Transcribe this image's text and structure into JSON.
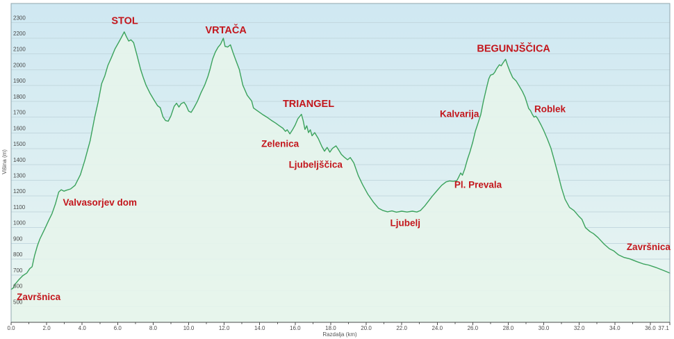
{
  "colors": {
    "annotation_red": "#c3161c",
    "line_green": "#3aa25c",
    "area_fill": "#e6f4eb",
    "bg_top": "#cfe8f2",
    "bg_mid": "#ddeff2",
    "bg_bottom": "#ecf7f1",
    "gridline": "#c3d8df",
    "axis_line": "#4a4a4a",
    "border": "#8fa6ae",
    "tick_text": "#4a4a4a"
  },
  "chart_data": {
    "type": "area",
    "title": "",
    "xlabel": "Razdalja (km)",
    "ylabel": "Višina (m)",
    "xlim": [
      0,
      37.1
    ],
    "ylim": [
      400,
      2420
    ],
    "grid": true,
    "legend": "none",
    "x_tick_values": [
      0,
      2,
      4,
      6,
      8,
      10,
      12,
      14,
      16,
      18,
      20,
      22,
      24,
      26,
      28,
      30,
      32,
      34,
      36,
      37.1
    ],
    "x_tick_labels": [
      "0.0",
      "2.0",
      "4.0",
      "6.0",
      "8.0",
      "10.0",
      "12.0",
      "14.0",
      "16.0",
      "18.0",
      "20.0",
      "22.0",
      "24.0",
      "26.0",
      "28.0",
      "30.0",
      "32.0",
      "34.0",
      "36.0",
      "37.1"
    ],
    "x_minor_ticks": [
      1,
      3,
      5,
      7,
      9,
      11,
      13,
      15,
      17,
      19,
      21,
      23,
      25,
      27,
      29,
      31,
      33,
      35
    ],
    "y_tick_values": [
      500,
      600,
      700,
      800,
      900,
      1000,
      1100,
      1200,
      1300,
      1400,
      1500,
      1600,
      1700,
      1800,
      1900,
      2000,
      2100,
      2200,
      2300
    ],
    "series": [
      {
        "name": "elevation-profile",
        "points": [
          [
            0,
            608
          ],
          [
            0.12,
            618
          ],
          [
            0.25,
            645
          ],
          [
            0.45,
            672
          ],
          [
            0.65,
            695
          ],
          [
            0.88,
            712
          ],
          [
            1.05,
            740
          ],
          [
            1.18,
            752
          ],
          [
            1.32,
            822
          ],
          [
            1.48,
            885
          ],
          [
            1.62,
            928
          ],
          [
            1.78,
            965
          ],
          [
            1.92,
            998
          ],
          [
            2.1,
            1042
          ],
          [
            2.3,
            1088
          ],
          [
            2.5,
            1152
          ],
          [
            2.68,
            1225
          ],
          [
            2.82,
            1240
          ],
          [
            2.98,
            1231
          ],
          [
            3.12,
            1237
          ],
          [
            3.35,
            1245
          ],
          [
            3.6,
            1268
          ],
          [
            3.9,
            1335
          ],
          [
            4.15,
            1425
          ],
          [
            4.45,
            1550
          ],
          [
            4.7,
            1695
          ],
          [
            4.9,
            1795
          ],
          [
            5.1,
            1912
          ],
          [
            5.28,
            1962
          ],
          [
            5.45,
            2028
          ],
          [
            5.65,
            2078
          ],
          [
            5.85,
            2132
          ],
          [
            6.05,
            2172
          ],
          [
            6.2,
            2202
          ],
          [
            6.37,
            2240
          ],
          [
            6.5,
            2208
          ],
          [
            6.62,
            2182
          ],
          [
            6.75,
            2190
          ],
          [
            6.9,
            2172
          ],
          [
            7.1,
            2088
          ],
          [
            7.3,
            2000
          ],
          [
            7.45,
            1948
          ],
          [
            7.6,
            1902
          ],
          [
            7.82,
            1852
          ],
          [
            8.08,
            1802
          ],
          [
            8.25,
            1772
          ],
          [
            8.4,
            1760
          ],
          [
            8.55,
            1702
          ],
          [
            8.7,
            1678
          ],
          [
            8.85,
            1674
          ],
          [
            9.0,
            1708
          ],
          [
            9.18,
            1768
          ],
          [
            9.32,
            1788
          ],
          [
            9.45,
            1764
          ],
          [
            9.58,
            1786
          ],
          [
            9.74,
            1794
          ],
          [
            9.86,
            1774
          ],
          [
            10.0,
            1738
          ],
          [
            10.14,
            1730
          ],
          [
            10.3,
            1760
          ],
          [
            10.5,
            1802
          ],
          [
            10.7,
            1856
          ],
          [
            10.9,
            1902
          ],
          [
            11.08,
            1956
          ],
          [
            11.2,
            2002
          ],
          [
            11.35,
            2068
          ],
          [
            11.5,
            2112
          ],
          [
            11.65,
            2142
          ],
          [
            11.8,
            2162
          ],
          [
            11.95,
            2200
          ],
          [
            12.05,
            2148
          ],
          [
            12.2,
            2144
          ],
          [
            12.35,
            2158
          ],
          [
            12.5,
            2108
          ],
          [
            12.65,
            2062
          ],
          [
            12.85,
            2002
          ],
          [
            13.05,
            1902
          ],
          [
            13.3,
            1838
          ],
          [
            13.55,
            1802
          ],
          [
            13.65,
            1758
          ],
          [
            13.8,
            1746
          ],
          [
            14.0,
            1730
          ],
          [
            14.2,
            1714
          ],
          [
            14.4,
            1700
          ],
          [
            14.65,
            1680
          ],
          [
            14.9,
            1662
          ],
          [
            15.1,
            1646
          ],
          [
            15.3,
            1630
          ],
          [
            15.45,
            1610
          ],
          [
            15.55,
            1620
          ],
          [
            15.7,
            1594
          ],
          [
            15.85,
            1620
          ],
          [
            16.0,
            1650
          ],
          [
            16.15,
            1690
          ],
          [
            16.35,
            1718
          ],
          [
            16.45,
            1678
          ],
          [
            16.55,
            1622
          ],
          [
            16.65,
            1645
          ],
          [
            16.75,
            1602
          ],
          [
            16.85,
            1620
          ],
          [
            16.95,
            1582
          ],
          [
            17.1,
            1602
          ],
          [
            17.3,
            1564
          ],
          [
            17.5,
            1514
          ],
          [
            17.65,
            1484
          ],
          [
            17.8,
            1508
          ],
          [
            17.95,
            1478
          ],
          [
            18.1,
            1502
          ],
          [
            18.3,
            1518
          ],
          [
            18.45,
            1492
          ],
          [
            18.6,
            1464
          ],
          [
            18.75,
            1448
          ],
          [
            18.95,
            1430
          ],
          [
            19.1,
            1444
          ],
          [
            19.3,
            1410
          ],
          [
            19.55,
            1330
          ],
          [
            19.8,
            1272
          ],
          [
            20.1,
            1210
          ],
          [
            20.4,
            1162
          ],
          [
            20.7,
            1122
          ],
          [
            20.95,
            1108
          ],
          [
            21.2,
            1100
          ],
          [
            21.45,
            1106
          ],
          [
            21.7,
            1098
          ],
          [
            22.0,
            1104
          ],
          [
            22.3,
            1099
          ],
          [
            22.6,
            1104
          ],
          [
            22.85,
            1099
          ],
          [
            23.05,
            1108
          ],
          [
            23.3,
            1138
          ],
          [
            23.7,
            1196
          ],
          [
            24.0,
            1236
          ],
          [
            24.25,
            1268
          ],
          [
            24.5,
            1290
          ],
          [
            24.7,
            1296
          ],
          [
            24.9,
            1293
          ],
          [
            25.1,
            1297
          ],
          [
            25.2,
            1318
          ],
          [
            25.32,
            1346
          ],
          [
            25.42,
            1332
          ],
          [
            25.55,
            1372
          ],
          [
            25.7,
            1432
          ],
          [
            25.85,
            1482
          ],
          [
            26.0,
            1542
          ],
          [
            26.15,
            1612
          ],
          [
            26.3,
            1662
          ],
          [
            26.45,
            1716
          ],
          [
            26.6,
            1800
          ],
          [
            26.75,
            1872
          ],
          [
            26.9,
            1942
          ],
          [
            27.0,
            1966
          ],
          [
            27.15,
            1972
          ],
          [
            27.25,
            1986
          ],
          [
            27.35,
            2008
          ],
          [
            27.5,
            2032
          ],
          [
            27.6,
            2025
          ],
          [
            27.72,
            2046
          ],
          [
            27.85,
            2066
          ],
          [
            27.95,
            2032
          ],
          [
            28.1,
            1988
          ],
          [
            28.25,
            1950
          ],
          [
            28.45,
            1928
          ],
          [
            28.6,
            1900
          ],
          [
            28.8,
            1862
          ],
          [
            28.95,
            1826
          ],
          [
            29.05,
            1790
          ],
          [
            29.15,
            1754
          ],
          [
            29.25,
            1742
          ],
          [
            29.35,
            1718
          ],
          [
            29.45,
            1700
          ],
          [
            29.55,
            1706
          ],
          [
            29.65,
            1692
          ],
          [
            29.85,
            1650
          ],
          [
            30.0,
            1614
          ],
          [
            30.2,
            1562
          ],
          [
            30.4,
            1504
          ],
          [
            30.6,
            1424
          ],
          [
            30.8,
            1340
          ],
          [
            31.0,
            1252
          ],
          [
            31.2,
            1180
          ],
          [
            31.45,
            1128
          ],
          [
            31.7,
            1108
          ],
          [
            31.95,
            1075
          ],
          [
            32.15,
            1052
          ],
          [
            32.35,
            1000
          ],
          [
            32.6,
            975
          ],
          [
            32.8,
            962
          ],
          [
            33.05,
            938
          ],
          [
            33.4,
            895
          ],
          [
            33.7,
            866
          ],
          [
            33.95,
            852
          ],
          [
            34.2,
            828
          ],
          [
            34.5,
            812
          ],
          [
            34.85,
            802
          ],
          [
            35.25,
            784
          ],
          [
            35.6,
            770
          ],
          [
            35.9,
            763
          ],
          [
            36.3,
            748
          ],
          [
            36.6,
            735
          ],
          [
            36.8,
            726
          ],
          [
            36.95,
            719
          ],
          [
            37.1,
            712
          ]
        ]
      }
    ],
    "annotations": [
      {
        "text": "Završnica",
        "km": 1.55,
        "m": 560,
        "major": false
      },
      {
        "text": "Valvasorjev dom",
        "km": 5.0,
        "m": 1160,
        "major": false
      },
      {
        "text": "STOL",
        "km": 6.4,
        "m": 2310,
        "major": true
      },
      {
        "text": "VRTAČA",
        "km": 12.1,
        "m": 2250,
        "major": true
      },
      {
        "text": "Zelenica",
        "km": 15.15,
        "m": 1530,
        "major": false
      },
      {
        "text": "TRIANGEL",
        "km": 16.75,
        "m": 1785,
        "major": true
      },
      {
        "text": "Ljubeljščica",
        "km": 17.15,
        "m": 1400,
        "major": false
      },
      {
        "text": "Ljubelj",
        "km": 22.2,
        "m": 1030,
        "major": false
      },
      {
        "text": "Kalvarija",
        "km": 25.25,
        "m": 1720,
        "major": false
      },
      {
        "text": "Pl. Prevala",
        "km": 26.3,
        "m": 1272,
        "major": false
      },
      {
        "text": "BEGUNJŠČICA",
        "km": 28.3,
        "m": 2135,
        "major": true
      },
      {
        "text": "Roblek",
        "km": 30.35,
        "m": 1750,
        "major": false
      },
      {
        "text": "Završnica",
        "km": 35.9,
        "m": 878,
        "major": false
      }
    ]
  }
}
